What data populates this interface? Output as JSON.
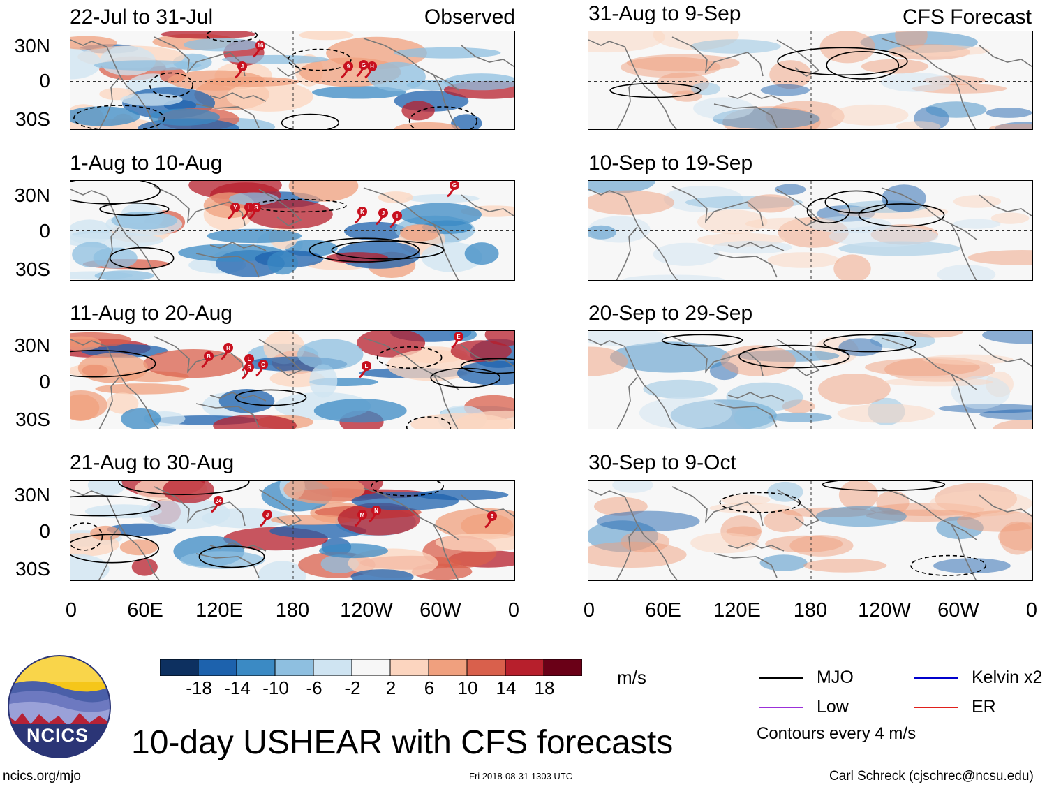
{
  "header": {
    "left_label": "Observed",
    "right_label": "CFS Forecast"
  },
  "observed_panels": [
    {
      "title": "22-Jul to 31-Jul",
      "storms": [
        "16",
        "J",
        "9",
        "G",
        "H"
      ]
    },
    {
      "title": "1-Aug to 10-Aug",
      "storms": [
        "Y",
        "L",
        "S",
        "K",
        "J",
        "I",
        "G"
      ]
    },
    {
      "title": "11-Aug to 20-Aug",
      "storms": [
        "B",
        "R",
        "L",
        "S",
        "C",
        "L",
        "E"
      ]
    },
    {
      "title": "21-Aug to 30-Aug",
      "storms": [
        "24",
        "J",
        "M",
        "N",
        "6"
      ]
    }
  ],
  "forecast_panels": [
    {
      "title": "31-Aug to 9-Sep"
    },
    {
      "title": "10-Sep to 19-Sep"
    },
    {
      "title": "20-Sep to 29-Sep"
    },
    {
      "title": "30-Sep to 9-Oct"
    }
  ],
  "lat_labels": [
    "30N",
    "0",
    "30S"
  ],
  "lon_labels": [
    "0",
    "60E",
    "120E",
    "180",
    "120W",
    "60W",
    "0"
  ],
  "colorbar": {
    "colors": [
      "#0d3060",
      "#1d62ad",
      "#3b8ac4",
      "#8ebfe0",
      "#cfe4f2",
      "#f7f7f7",
      "#fcd5bf",
      "#f0a07e",
      "#d9604c",
      "#b71f2c",
      "#6a0017"
    ],
    "ticks": [
      "-18",
      "-14",
      "-10",
      "-6",
      "-2",
      "2",
      "6",
      "10",
      "14",
      "18"
    ],
    "unit": "m/s"
  },
  "legend": {
    "items": [
      {
        "label": "MJO",
        "color": "#000000"
      },
      {
        "label": "Kelvin x2",
        "color": "#0000cc"
      },
      {
        "label": "Low",
        "color": "#9b30d9"
      },
      {
        "label": "ER",
        "color": "#e0201c"
      }
    ],
    "contour_note": "Contours every 4 m/s"
  },
  "logo_text": "NCICS",
  "title": "10-day USHEAR with CFS forecasts",
  "footer": {
    "url": "ncics.org/mjo",
    "timestamp": "Fri 2018-08-31 1303 UTC",
    "credit": "Carl Schreck (cjschrec@ncsu.edu)"
  }
}
